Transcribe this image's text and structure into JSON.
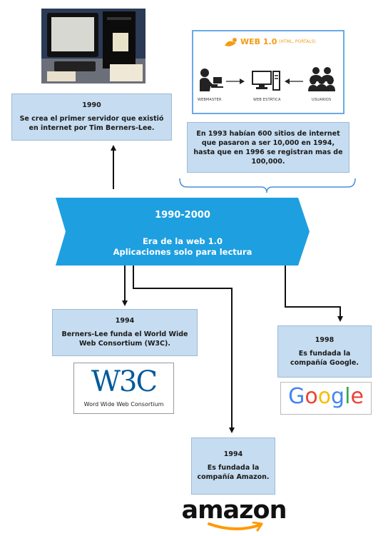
{
  "banner": {
    "period": "1990-2000",
    "title": "Era de la web 1.0",
    "subtitle": "Aplicaciones solo para lectura"
  },
  "events": {
    "e1990": {
      "year": "1990",
      "text": "Se crea el primer servidor que existió en internet por Tim Berners-Lee."
    },
    "e1993": {
      "text": "En 1993 habían 600 sitios de internet que pasaron a ser 10,000 en 1994, hasta que en 1996 se registran mas de 100,000."
    },
    "e1994a": {
      "year": "1994",
      "text": "Berners-Lee funda el World Wide Web Consortium (W3C)."
    },
    "e1998": {
      "year": "1998",
      "text": "Es fundada la compañía Google."
    },
    "e1994b": {
      "year": "1994",
      "text": "Es fundada la compañía Amazon."
    }
  },
  "web1_diagram": {
    "title": "WEB 1.0",
    "subtitle": "(HTML, PORTALS)",
    "webmaster": "WEBMASTER",
    "static_web": "WEB ESTÁTICA",
    "users": "USUARIOS"
  },
  "logos": {
    "w3c_mark": "W3C",
    "w3c_caption": "Word Wide Web Consortium",
    "google": "Google",
    "amazon": "amazon"
  },
  "colors": {
    "banner": "#1e9fe0",
    "box": "#c6dcf0",
    "web1_accent": "#f39c12",
    "w3c_blue": "#005a9c",
    "amazon_orange": "#ff9900"
  }
}
